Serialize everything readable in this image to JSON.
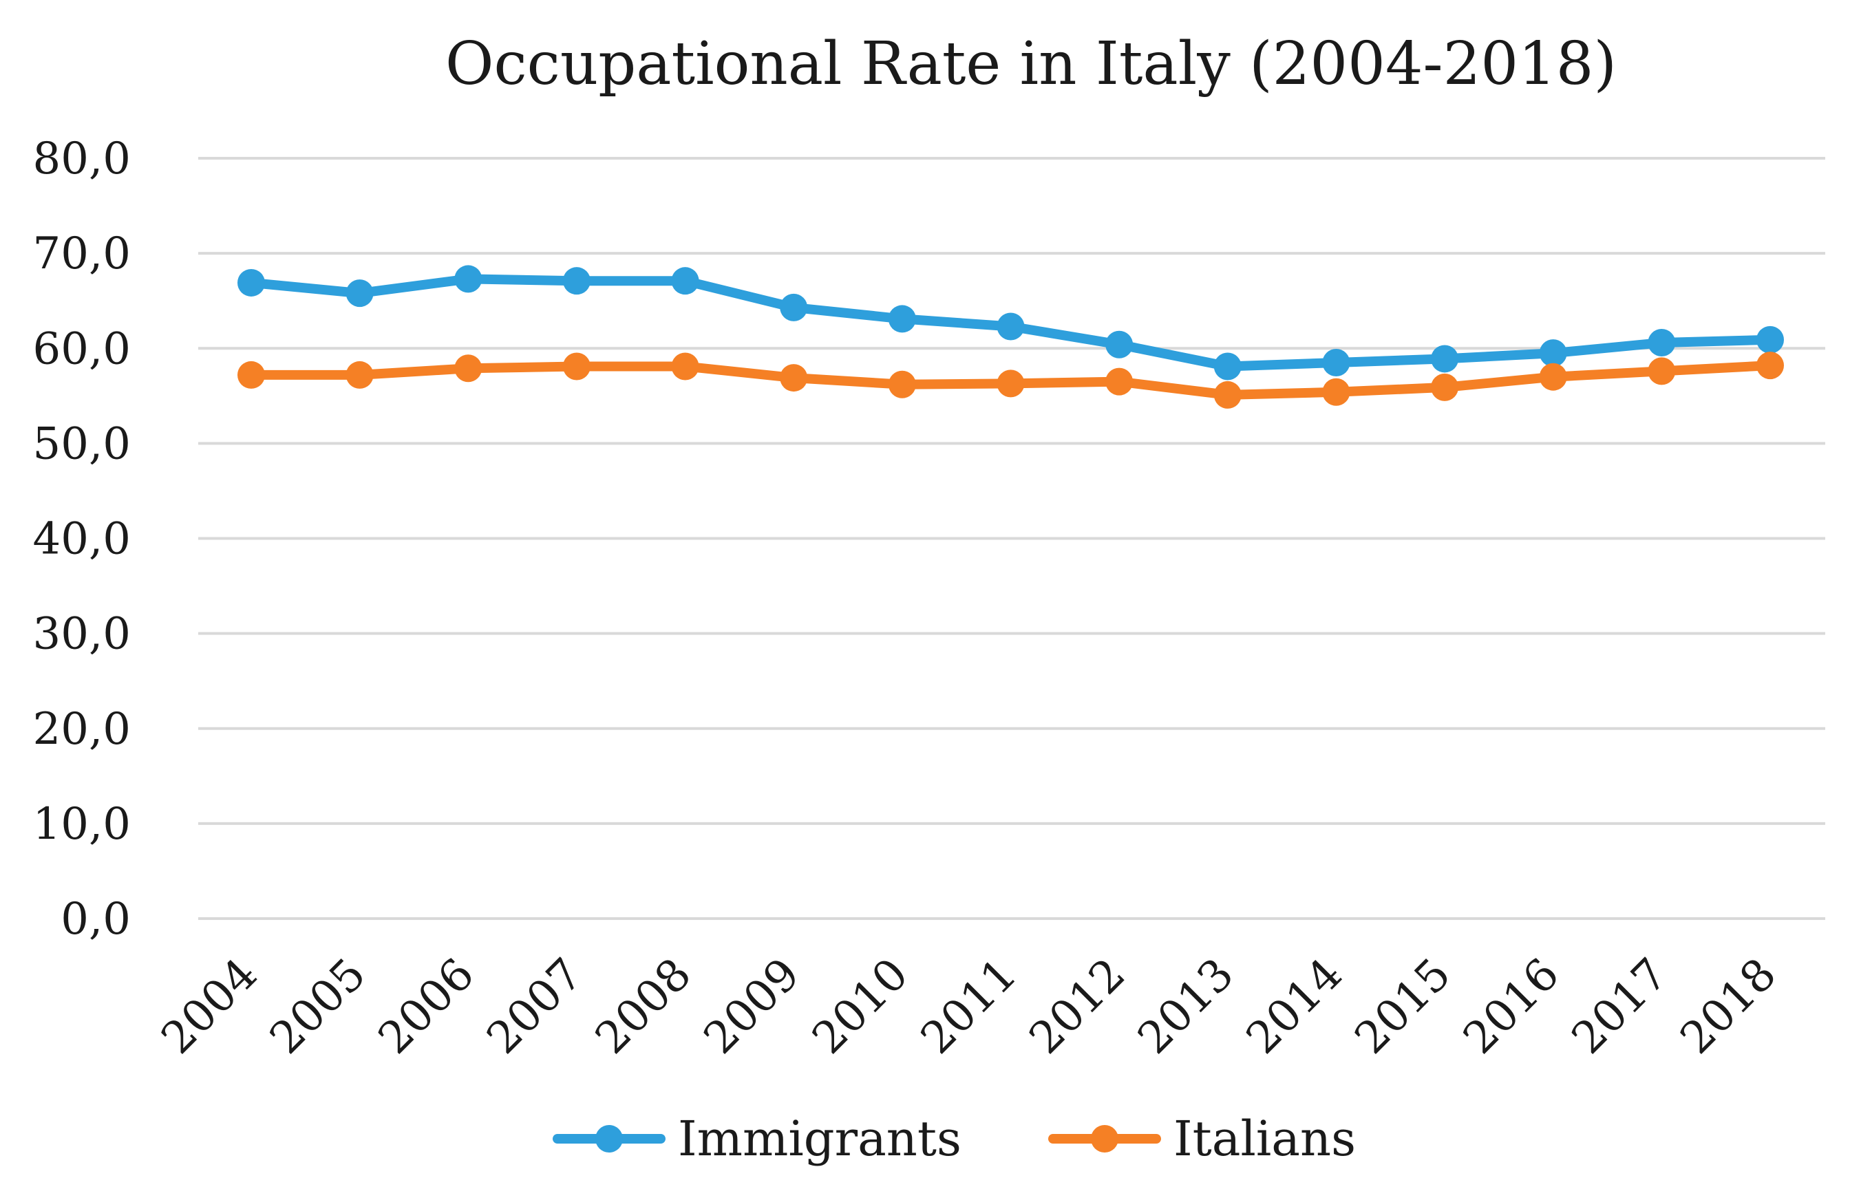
{
  "chart_data": {
    "type": "line",
    "title": "Occupational Rate in Italy (2004-2018)",
    "xlabel": "",
    "ylabel": "",
    "categories": [
      "2004",
      "2005",
      "2006",
      "2007",
      "2008",
      "2009",
      "2010",
      "2011",
      "2012",
      "2013",
      "2014",
      "2015",
      "2016",
      "2017",
      "2018"
    ],
    "y_ticks": [
      "0,0",
      "10,0",
      "20,0",
      "30,0",
      "40,0",
      "50,0",
      "60,0",
      "70,0",
      "80,0"
    ],
    "ylim": [
      0,
      80
    ],
    "grid": true,
    "legend_position": "bottom",
    "series": [
      {
        "name": "Immigrants",
        "color": "#2E9FDC",
        "values": [
          66.9,
          65.8,
          67.3,
          67.1,
          67.1,
          64.3,
          63.1,
          62.3,
          60.4,
          58.1,
          58.5,
          58.9,
          59.5,
          60.6,
          60.9
        ]
      },
      {
        "name": "Italians",
        "color": "#F58025",
        "values": [
          57.2,
          57.2,
          57.9,
          58.1,
          58.1,
          56.9,
          56.2,
          56.3,
          56.5,
          55.1,
          55.4,
          55.9,
          57.0,
          57.6,
          58.2
        ]
      }
    ]
  }
}
